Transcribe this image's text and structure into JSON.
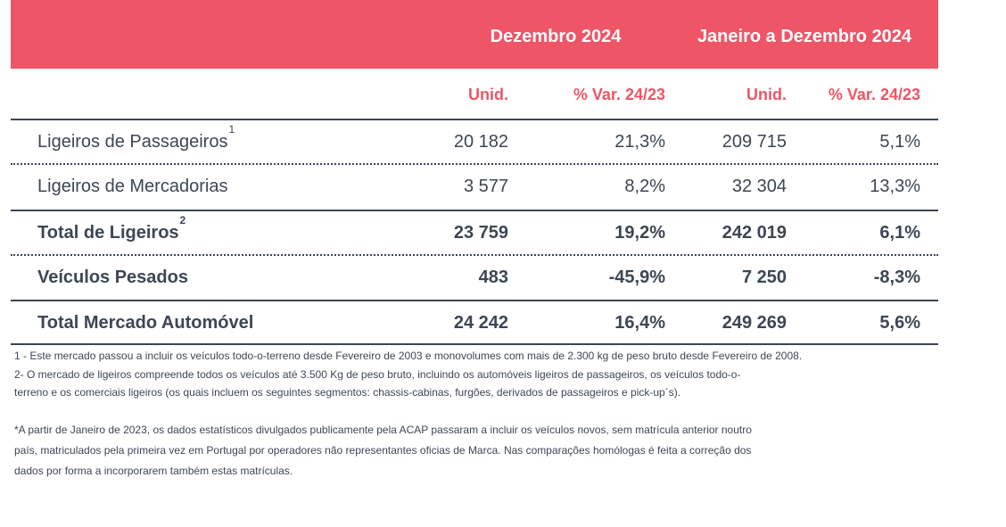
{
  "header": {
    "period_month": "Dezembro 2024",
    "period_year": "Janeiro a Dezembro 2024"
  },
  "subheaders": {
    "month_units": "Unid.",
    "month_var": "% Var. 24/23",
    "year_units": "Unid.",
    "year_var": "% Var. 24/23"
  },
  "rows": [
    {
      "label": "Ligeiros de Passageiros",
      "footnote": "1",
      "month_units": "20 182",
      "month_var": "21,3%",
      "year_units": "209 715",
      "year_var": "5,1%"
    },
    {
      "label": "Ligeiros de Mercadorias",
      "footnote": "",
      "month_units": "3 577",
      "month_var": "8,2%",
      "year_units": "32 304",
      "year_var": "13,3%"
    },
    {
      "label": "Total de Ligeiros",
      "footnote": "2",
      "month_units": "23 759",
      "month_var": "19,2%",
      "year_units": "242 019",
      "year_var": "6,1%"
    },
    {
      "label": "Veículos Pesados",
      "footnote": "",
      "month_units": "483",
      "month_var": "-45,9%",
      "year_units": "7 250",
      "year_var": "-8,3%"
    },
    {
      "label": "Total Mercado Automóvel",
      "footnote": "",
      "month_units": "24 242",
      "month_var": "16,4%",
      "year_units": "249 269",
      "year_var": "5,6%"
    }
  ],
  "notes": {
    "note1": "1 - Este mercado passou a incluir os veículos todo-o-terreno desde Fevereiro de 2003 e monovolumes com mais de 2.300 kg de peso bruto desde Fevereiro de 2008.",
    "note2_line1": "2- O mercado de ligeiros compreende todos os veículos até 3.500 Kg de peso bruto, incluindo os automóveis ligeiros de passageiros, os veículos todo-o-",
    "note2_line2": "terreno e os comerciais ligeiros (os quais incluem os seguintes segmentos: chassis-cabinas, furgões, derivados de passageiros e pick-up´s).",
    "note3_line1": "*A partir de Janeiro de 2023, os dados estatísticos divulgados publicamente pela ACAP passaram a incluir os veículos novos, sem matrícula anterior noutro",
    "note3_line2": "país, matriculados pela primeira vez em Portugal por operadores não representantes oficias de Marca. Nas comparações homólogas é feita a correção dos",
    "note3_line3": "dados por forma a incorporarem também estas matrículas."
  }
}
